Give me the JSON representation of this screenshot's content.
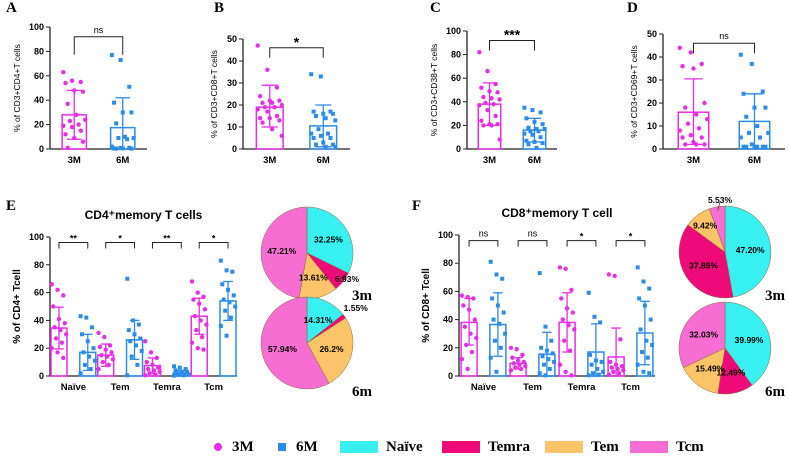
{
  "colors": {
    "m3": "#e62ee6",
    "m6": "#2b8be6",
    "naive": "#38f0f0",
    "temra": "#ee0a78",
    "tem": "#fcc468",
    "tcm": "#f66ed2"
  },
  "legend": [
    {
      "label": "3M",
      "shape": "circle",
      "color": "#e62ee6"
    },
    {
      "label": "6M",
      "shape": "square",
      "color": "#2b8be6"
    },
    {
      "label": "Naïve",
      "shape": "rect",
      "color": "#38f0f0"
    },
    {
      "label": "Temra",
      "shape": "rect",
      "color": "#ee0a78"
    },
    {
      "label": "Tem",
      "shape": "rect",
      "color": "#fcc468"
    },
    {
      "label": "Tcm",
      "shape": "rect",
      "color": "#f66ed2"
    }
  ],
  "chart_data": [
    {
      "panel": "A",
      "type": "bar",
      "ylabel": "% of CD3+CD4+T cells",
      "ylim": [
        0,
        100
      ],
      "yticks": [
        0,
        20,
        40,
        60,
        80,
        100
      ],
      "categories": [
        "3M",
        "6M"
      ],
      "significance": [
        "ns"
      ],
      "series": [
        {
          "name": "3M",
          "mean": 28,
          "sd_upper": 48,
          "sd_lower": 8,
          "points": [
            63,
            56,
            55,
            54,
            48,
            47,
            37,
            28,
            24,
            23,
            20,
            19,
            18,
            15,
            12,
            9,
            6,
            1
          ]
        },
        {
          "name": "6M",
          "mean": 17.5,
          "sd_upper": 42,
          "sd_lower": 0,
          "points": [
            77,
            73,
            51,
            38,
            30,
            30,
            21,
            10,
            9,
            9,
            8,
            2,
            1,
            1,
            0.5,
            0.5,
            0.3,
            0.3
          ]
        }
      ]
    },
    {
      "panel": "B",
      "type": "bar",
      "ylabel": "% of CD3+CD8+T cells",
      "ylim": [
        0,
        50
      ],
      "yticks": [
        0,
        10,
        20,
        30,
        40,
        50
      ],
      "categories": [
        "3M",
        "6M"
      ],
      "significance": [
        "*"
      ],
      "series": [
        {
          "name": "3M",
          "mean": 19,
          "sd_upper": 29,
          "sd_lower": 10,
          "points": [
            47,
            36,
            28,
            24,
            22,
            22,
            21,
            21,
            20,
            19,
            19,
            18,
            17,
            15,
            14,
            14,
            13,
            12,
            9,
            6
          ]
        },
        {
          "name": "6M",
          "mean": 10.5,
          "sd_upper": 20,
          "sd_lower": 1,
          "points": [
            34,
            33,
            17,
            17,
            16,
            16,
            15,
            14,
            13,
            9,
            7,
            7,
            6,
            5,
            5,
            3,
            2,
            2,
            1,
            1
          ]
        }
      ]
    },
    {
      "panel": "C",
      "type": "bar",
      "ylabel": "% of CD3+CD38+T cells",
      "ylim": [
        0,
        100
      ],
      "yticks": [
        0,
        20,
        40,
        60,
        80,
        100
      ],
      "categories": [
        "3M",
        "6M"
      ],
      "significance": [
        "***"
      ],
      "series": [
        {
          "name": "3M",
          "mean": 38,
          "sd_upper": 56,
          "sd_lower": 20,
          "points": [
            82,
            66,
            55,
            52,
            49,
            48,
            44,
            43,
            42,
            39,
            38,
            37,
            33,
            28,
            24,
            21,
            21,
            20,
            20,
            8
          ]
        },
        {
          "name": "6M",
          "mean": 16,
          "sd_upper": 26,
          "sd_lower": 6,
          "points": [
            35,
            33,
            31,
            26,
            23,
            21,
            18,
            17,
            17,
            15,
            15,
            13,
            12,
            10,
            7,
            6,
            5,
            4,
            1
          ]
        }
      ]
    },
    {
      "panel": "D",
      "type": "bar",
      "ylabel": "% of CD3+CD69+T cells",
      "ylim": [
        0,
        50
      ],
      "yticks": [
        0,
        10,
        20,
        30,
        40,
        50
      ],
      "categories": [
        "3M",
        "6M"
      ],
      "significance": [
        "ns"
      ],
      "series": [
        {
          "name": "3M",
          "mean": 16,
          "sd_upper": 30.5,
          "sd_lower": 2,
          "points": [
            44,
            42,
            37,
            36,
            35,
            20,
            18,
            15,
            13,
            11,
            9,
            8,
            6,
            5,
            5,
            3,
            2,
            2,
            2
          ]
        },
        {
          "name": "6M",
          "mean": 12,
          "sd_upper": 24,
          "sd_lower": 0,
          "points": [
            41,
            37,
            25,
            24,
            18,
            18,
            14,
            10,
            7,
            7,
            5,
            5,
            2,
            1,
            1,
            1,
            1,
            1,
            1
          ]
        }
      ]
    },
    {
      "panel": "E",
      "type": "bar",
      "title": "CD4⁺memory T cells",
      "ylabel": "% of CD4+ Tcell",
      "ylim": [
        0,
        100
      ],
      "yticks": [
        0,
        20,
        40,
        60,
        80,
        100
      ],
      "categories": [
        "Naïve",
        "Tem",
        "Temra",
        "Tcm"
      ],
      "significance": [
        "**",
        "*",
        "**",
        "*"
      ],
      "series": [
        {
          "name": "3M",
          "mean": [
            34.5,
            15,
            7.5,
            43
          ],
          "sd_upper": [
            49.5,
            23,
            13,
            56
          ],
          "points": [
            [
              66,
              62,
              58,
              50,
              41,
              38,
              35,
              33,
              30,
              27,
              24,
              20,
              17,
              13
            ],
            [
              31,
              28,
              22,
              21,
              19,
              17,
              15,
              14,
              12,
              10,
              8,
              5
            ],
            [
              25,
              17,
              13,
              10,
              8,
              6,
              5,
              4,
              3,
              2,
              1,
              0.5
            ],
            [
              68,
              60,
              57,
              55,
              52,
              48,
              43,
              40,
              37,
              33,
              28,
              24,
              20,
              19
            ]
          ]
        },
        {
          "name": "6M",
          "mean": [
            17,
            26,
            2,
            54
          ],
          "sd_upper": [
            30,
            40,
            4,
            68
          ],
          "points": [
            [
              43,
              42,
              35,
              30,
              25,
              20,
              17,
              14,
              11,
              8,
              5,
              2
            ],
            [
              70,
              40,
              37,
              33,
              30,
              27,
              25,
              22,
              18,
              14,
              8,
              0.5
            ],
            [
              7,
              6,
              5,
              4,
              3,
              3,
              2,
              2,
              1,
              1,
              0.5,
              0.3
            ],
            [
              83,
              76,
              75,
              66,
              62,
              58,
              55,
              53,
              50,
              47,
              42,
              36,
              29
            ]
          ]
        }
      ]
    },
    {
      "panel": "F",
      "type": "bar",
      "title": "CD8⁺memory T cell",
      "ylabel": "% of CD8+ Tcell",
      "ylim": [
        0,
        100
      ],
      "yticks": [
        0,
        20,
        40,
        60,
        80,
        100
      ],
      "categories": [
        "Naïve",
        "Tem",
        "Temra",
        "Tcm"
      ],
      "significance": [
        "ns",
        "ns",
        "*",
        "*"
      ],
      "series": [
        {
          "name": "3M",
          "mean": [
            38,
            9,
            38,
            13.5
          ],
          "sd_upper": [
            55,
            13,
            59,
            34
          ],
          "sd_lower": [
            22,
            5,
            17,
            0
          ],
          "points": [
            [
              57,
              56,
              55,
              50,
              47,
              40,
              35,
              30,
              27,
              22,
              17,
              12,
              5
            ],
            [
              20,
              19,
              15,
              13,
              11,
              10,
              9,
              8,
              7,
              6,
              5,
              4
            ],
            [
              77,
              76,
              61,
              55,
              48,
              45,
              40,
              36,
              33,
              25,
              18,
              8,
              3,
              0.5
            ],
            [
              72,
              71,
              26,
              10,
              8,
              7,
              6,
              5,
              4,
              3,
              2,
              1
            ]
          ]
        },
        {
          "name": "6M",
          "mean": [
            36.5,
            15.5,
            17,
            30.5
          ],
          "sd_upper": [
            59,
            31,
            37,
            53
          ],
          "sd_lower": [
            14,
            0,
            0,
            8
          ],
          "points": [
            [
              81,
              72,
              69,
              55,
              50,
              45,
              40,
              37,
              30,
              25,
              20,
              13,
              3
            ],
            [
              73,
              35,
              25,
              20,
              18,
              16,
              14,
              12,
              10,
              8,
              5,
              2,
              0.5
            ],
            [
              59,
              42,
              38,
              15,
              11,
              10,
              8,
              5,
              3,
              2,
              1,
              0.5
            ],
            [
              77,
              67,
              62,
              55,
              50,
              40,
              33,
              25,
              22,
              17,
              13,
              8,
              3,
              2
            ]
          ]
        }
      ]
    },
    {
      "panel": "E",
      "type": "pie",
      "label": "3m",
      "slices": [
        {
          "name": "Naïve",
          "value": 32.25,
          "label": "32.25%"
        },
        {
          "name": "Temra",
          "value": 6.93,
          "label": "6.93%"
        },
        {
          "name": "Tem",
          "value": 13.61,
          "label": "13.61%"
        },
        {
          "name": "Tcm",
          "value": 47.21,
          "label": "47.21%"
        }
      ]
    },
    {
      "panel": "E",
      "type": "pie",
      "label": "6m",
      "slices": [
        {
          "name": "Naïve",
          "value": 14.31,
          "label": "14.31%"
        },
        {
          "name": "Temra",
          "value": 1.55,
          "label": "1.55%"
        },
        {
          "name": "Tem",
          "value": 26.2,
          "label": "26.2%"
        },
        {
          "name": "Tcm",
          "value": 57.94,
          "label": "57.94%"
        }
      ]
    },
    {
      "panel": "F",
      "type": "pie",
      "label": "3m",
      "slices": [
        {
          "name": "Naïve",
          "value": 47.2,
          "label": "47.20%"
        },
        {
          "name": "Temra",
          "value": 37.85,
          "label": "37.85%"
        },
        {
          "name": "Tem",
          "value": 9.42,
          "label": "9.42%"
        },
        {
          "name": "Tcm",
          "value": 5.53,
          "label": "5.53%"
        }
      ]
    },
    {
      "panel": "F",
      "type": "pie",
      "label": "6m",
      "slices": [
        {
          "name": "Naïve",
          "value": 39.99,
          "label": "39.99%"
        },
        {
          "name": "Temra",
          "value": 12.49,
          "label": "12.49%"
        },
        {
          "name": "Tem",
          "value": 15.49,
          "label": "15.49%"
        },
        {
          "name": "Tcm",
          "value": 32.03,
          "label": "32.03%"
        }
      ]
    }
  ]
}
